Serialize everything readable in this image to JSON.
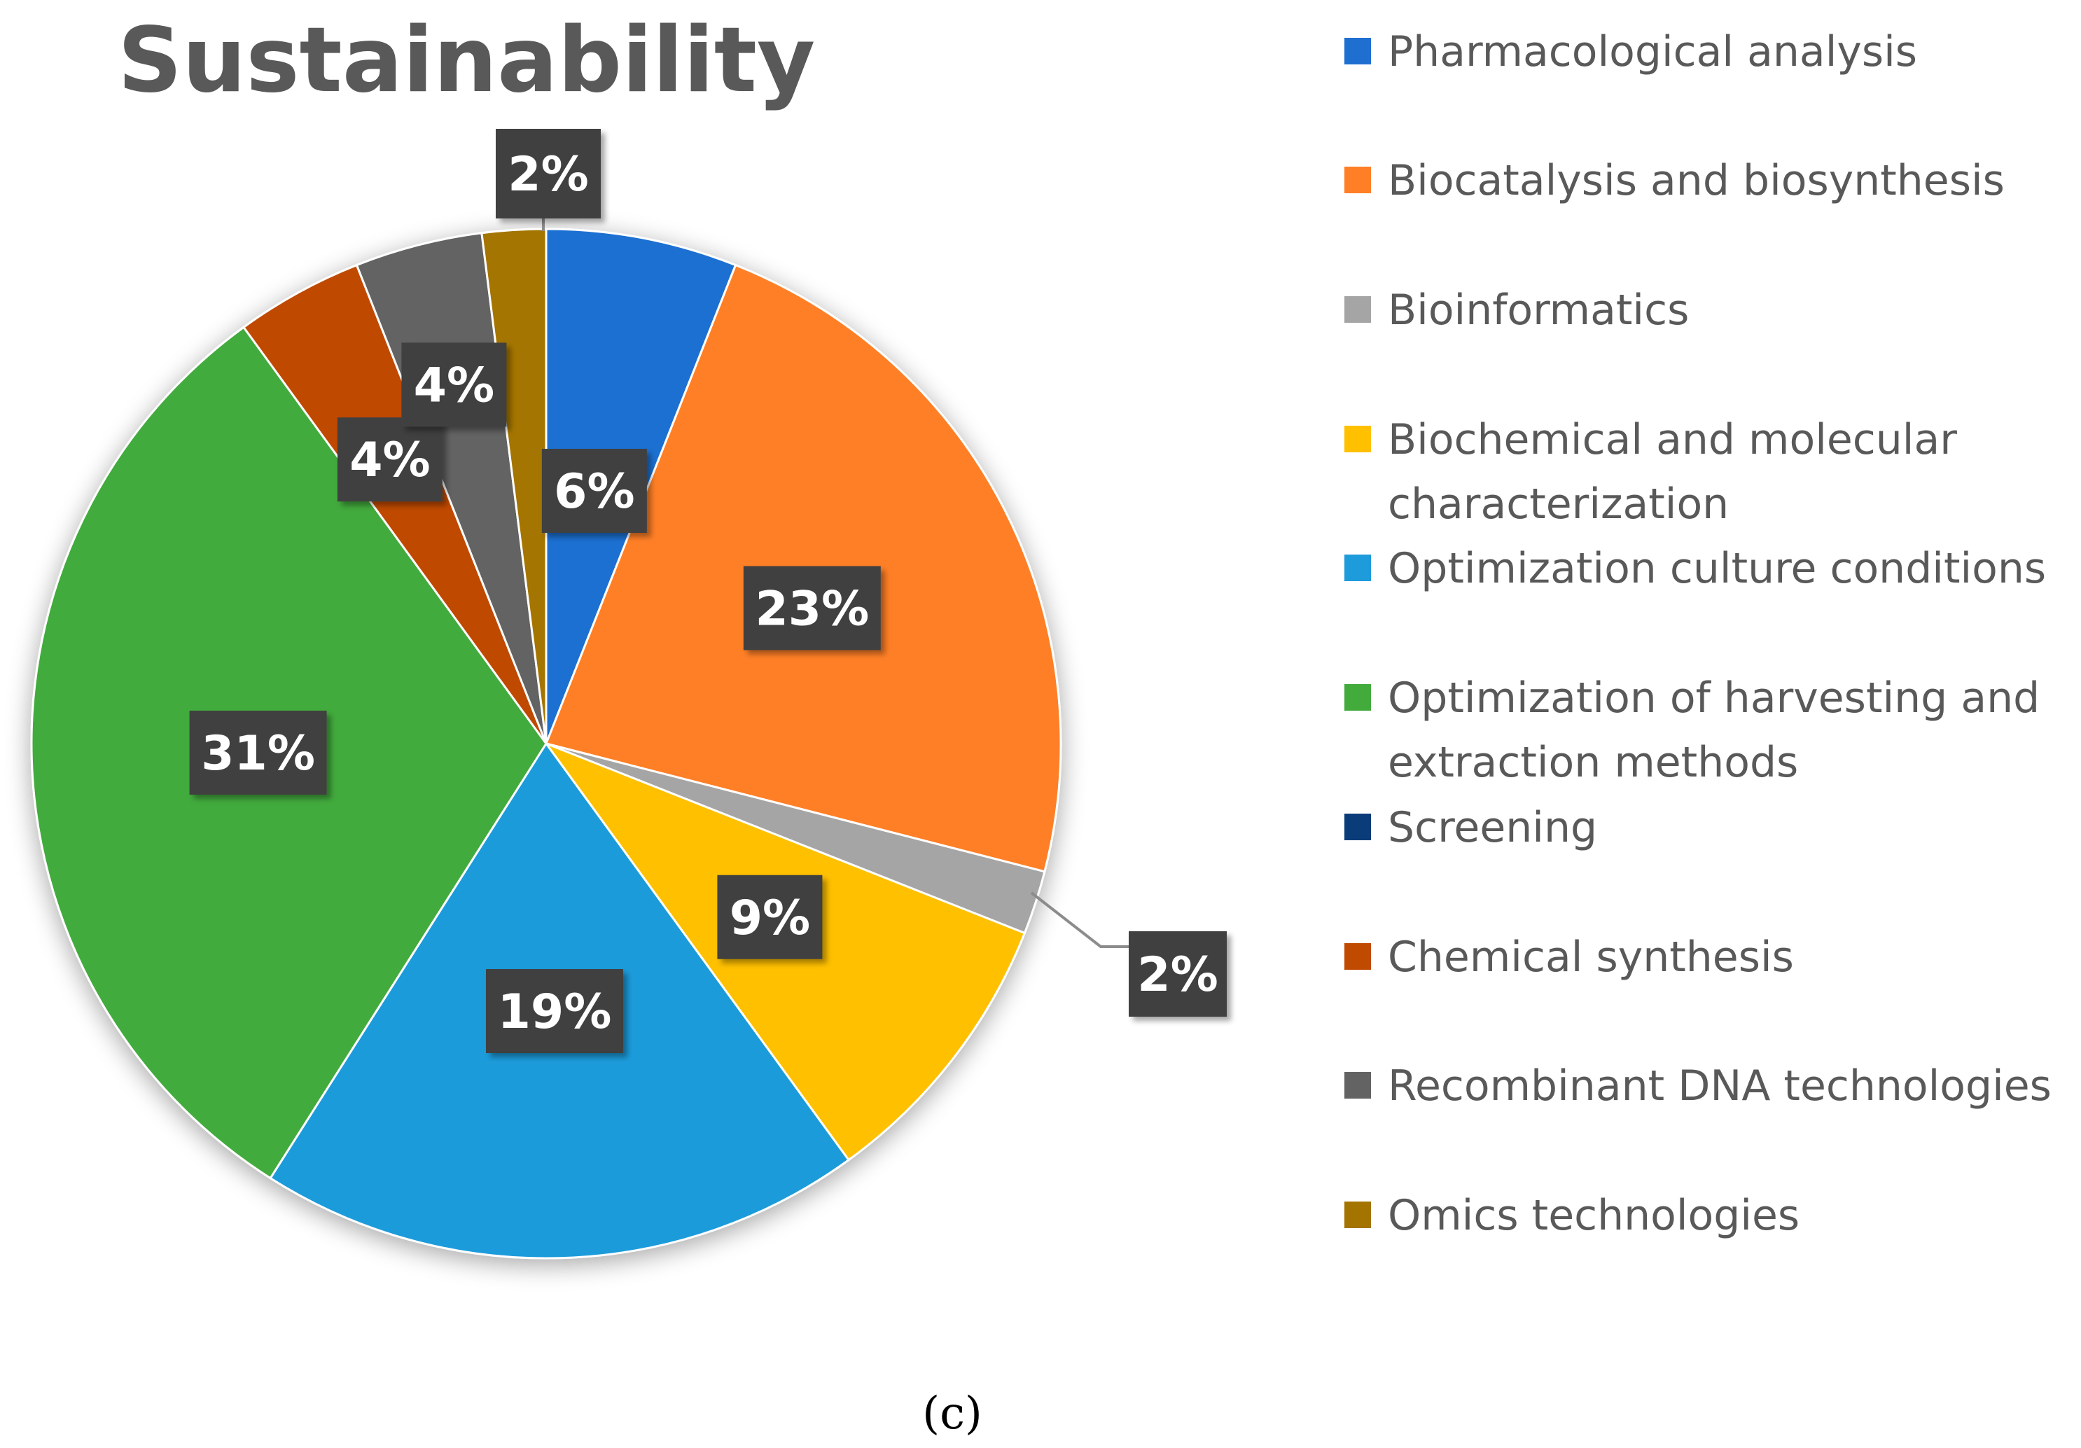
{
  "caption": "(c)",
  "chart_data": {
    "type": "pie",
    "title": "Sustainability",
    "unit": "%",
    "categories": [
      "Pharmacological analysis",
      "Biocatalysis and biosynthesis",
      "Bioinformatics",
      "Biochemical and molecular characterization",
      "Optimization culture conditions",
      "Optimization of harvesting and extraction methods",
      "Screening",
      "Chemical synthesis",
      "Recombinant DNA technologies",
      "Omics technologies"
    ],
    "legend_lines": [
      [
        "Pharmacological analysis"
      ],
      [
        "Biocatalysis and biosynthesis"
      ],
      [
        "Bioinformatics"
      ],
      [
        "Biochemical and molecular",
        "characterization"
      ],
      [
        "Optimization culture conditions"
      ],
      [
        "Optimization of harvesting and",
        "extraction methods"
      ],
      [
        "Screening"
      ],
      [
        "Chemical synthesis"
      ],
      [
        "Recombinant DNA technologies"
      ],
      [
        "Omics technologies"
      ]
    ],
    "values": [
      6,
      23,
      2,
      9,
      19,
      31,
      0,
      4,
      4,
      2
    ],
    "labels": [
      "6%",
      "23%",
      "2%",
      "9%",
      "19%",
      "31%",
      "",
      "4%",
      "4%",
      "2%"
    ],
    "colors": [
      "#1f6fd1",
      "#ff7f27",
      "#a5a5a5",
      "#ffc000",
      "#1e9bdb",
      "#43ab3c",
      "#0b3c7a",
      "#c04a00",
      "#636363",
      "#a47400"
    ],
    "legend_position": "right",
    "start": "top",
    "direction": "clockwise"
  }
}
